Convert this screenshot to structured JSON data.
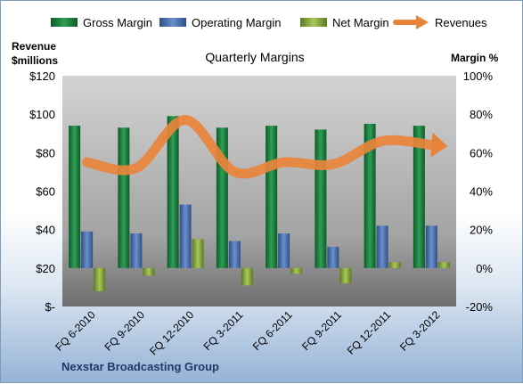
{
  "chart_data": {
    "type": "bar",
    "title": "Quarterly Margins",
    "company": "Nexstar Broadcasting Group",
    "ylabel_left": [
      "Revenue",
      "$millions"
    ],
    "ylabel_right": "Margin %",
    "categories": [
      "FQ 6-2010",
      "FQ 9-2010",
      "FQ 12-2010",
      "FQ 3-2011",
      "FQ 6-2011",
      "FQ 9-2011",
      "FQ 12-2011",
      "FQ 3-2012"
    ],
    "left_axis": {
      "ylim": [
        0,
        120
      ],
      "ticks": [
        "$-",
        "$20",
        "$40",
        "$60",
        "$80",
        "$100",
        "$120"
      ]
    },
    "right_axis": {
      "ylim": [
        -20,
        100
      ],
      "ticks": [
        "-20%",
        "0%",
        "20%",
        "40%",
        "60%",
        "80%",
        "100%"
      ]
    },
    "series": [
      {
        "name": "Gross Margin",
        "axis": "right",
        "type": "bar",
        "color": "#1e7a3c",
        "values": [
          74,
          73,
          79,
          73,
          74,
          72,
          75,
          74
        ]
      },
      {
        "name": "Operating Margin",
        "axis": "right",
        "type": "bar",
        "color": "#4a72b0",
        "values": [
          19,
          18,
          33,
          14,
          18,
          11,
          22,
          22
        ]
      },
      {
        "name": "Net Margin",
        "axis": "right",
        "type": "bar",
        "color": "#8caf3f",
        "values": [
          -12,
          -4,
          15,
          -9,
          -3,
          -8,
          3,
          3
        ]
      },
      {
        "name": "Revenues",
        "axis": "left",
        "type": "line",
        "color": "#e8843a",
        "values": [
          75,
          72,
          97,
          70,
          75,
          74,
          86,
          84
        ]
      }
    ],
    "grid": false,
    "legend": "top"
  }
}
